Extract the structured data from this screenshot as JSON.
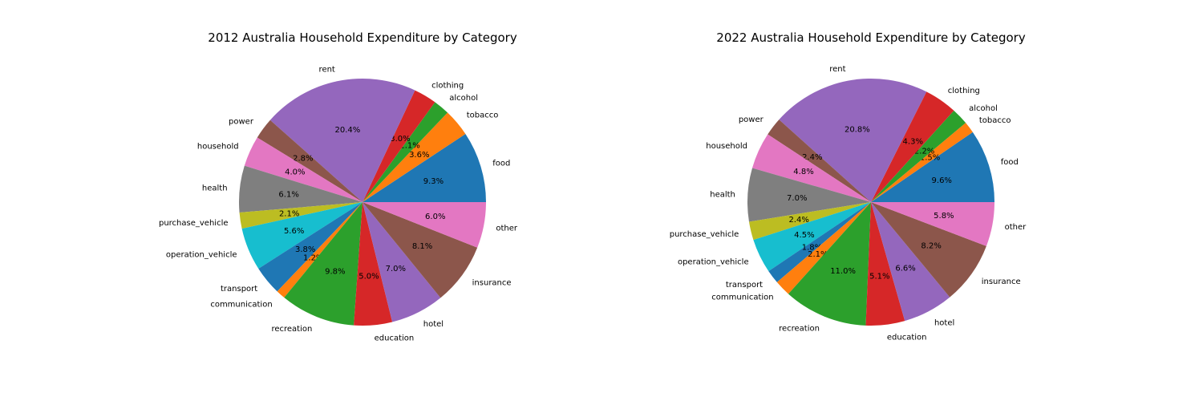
{
  "chart_data": [
    {
      "type": "pie",
      "title": "2012 Australia Household Expenditure by Category",
      "categories": [
        "food",
        "tobacco",
        "alcohol",
        "clothing",
        "rent",
        "power",
        "household",
        "health",
        "purchase_vehicle",
        "operation_vehicle",
        "transport",
        "communication",
        "recreation",
        "education",
        "hotel",
        "insurance",
        "other"
      ],
      "values": [
        9.3,
        3.6,
        2.1,
        3.0,
        20.4,
        2.8,
        4.0,
        6.1,
        2.1,
        5.6,
        3.8,
        1.2,
        9.8,
        5.0,
        7.0,
        8.1,
        6.0
      ],
      "value_labels": [
        "9.3%",
        "3.6%",
        "2.1%",
        "3.0%",
        "20.4%",
        "2.8%",
        "4.0%",
        "6.1%",
        "2.1%",
        "5.6%",
        "3.8%",
        "1.2%",
        "9.8%",
        "5.0%",
        "7.0%",
        "8.1%",
        "6.0%"
      ],
      "start_angle_deg": 0,
      "direction": "counterclockwise"
    },
    {
      "type": "pie",
      "title": "2022 Australia Household Expenditure by Category",
      "categories": [
        "food",
        "tobacco",
        "alcohol",
        "clothing",
        "rent",
        "power",
        "household",
        "health",
        "purchase_vehicle",
        "operation_vehicle",
        "transport",
        "communication",
        "recreation",
        "education",
        "hotel",
        "insurance",
        "other"
      ],
      "values": [
        9.6,
        1.5,
        2.2,
        4.3,
        20.8,
        2.4,
        4.8,
        7.0,
        2.4,
        4.5,
        1.8,
        2.1,
        11.0,
        5.1,
        6.6,
        8.2,
        5.8
      ],
      "value_labels": [
        "9.6%",
        "1.5%",
        "2.2%",
        "4.3%",
        "20.8%",
        "2.4%",
        "4.8%",
        "7.0%",
        "2.4%",
        "4.5%",
        "1.8%",
        "2.1%",
        "11.0%",
        "5.1%",
        "6.6%",
        "8.2%",
        "5.8%"
      ],
      "start_angle_deg": 0,
      "direction": "counterclockwise"
    }
  ],
  "colors": [
    "#1f77b4",
    "#ff7f0e",
    "#2ca02c",
    "#d62728",
    "#9467bd",
    "#8c564b",
    "#e377c2",
    "#7f7f7f",
    "#bcbd22",
    "#17becf",
    "#1f77b4",
    "#ff7f0e",
    "#2ca02c",
    "#d62728",
    "#9467bd",
    "#8c564b",
    "#e377c2"
  ]
}
